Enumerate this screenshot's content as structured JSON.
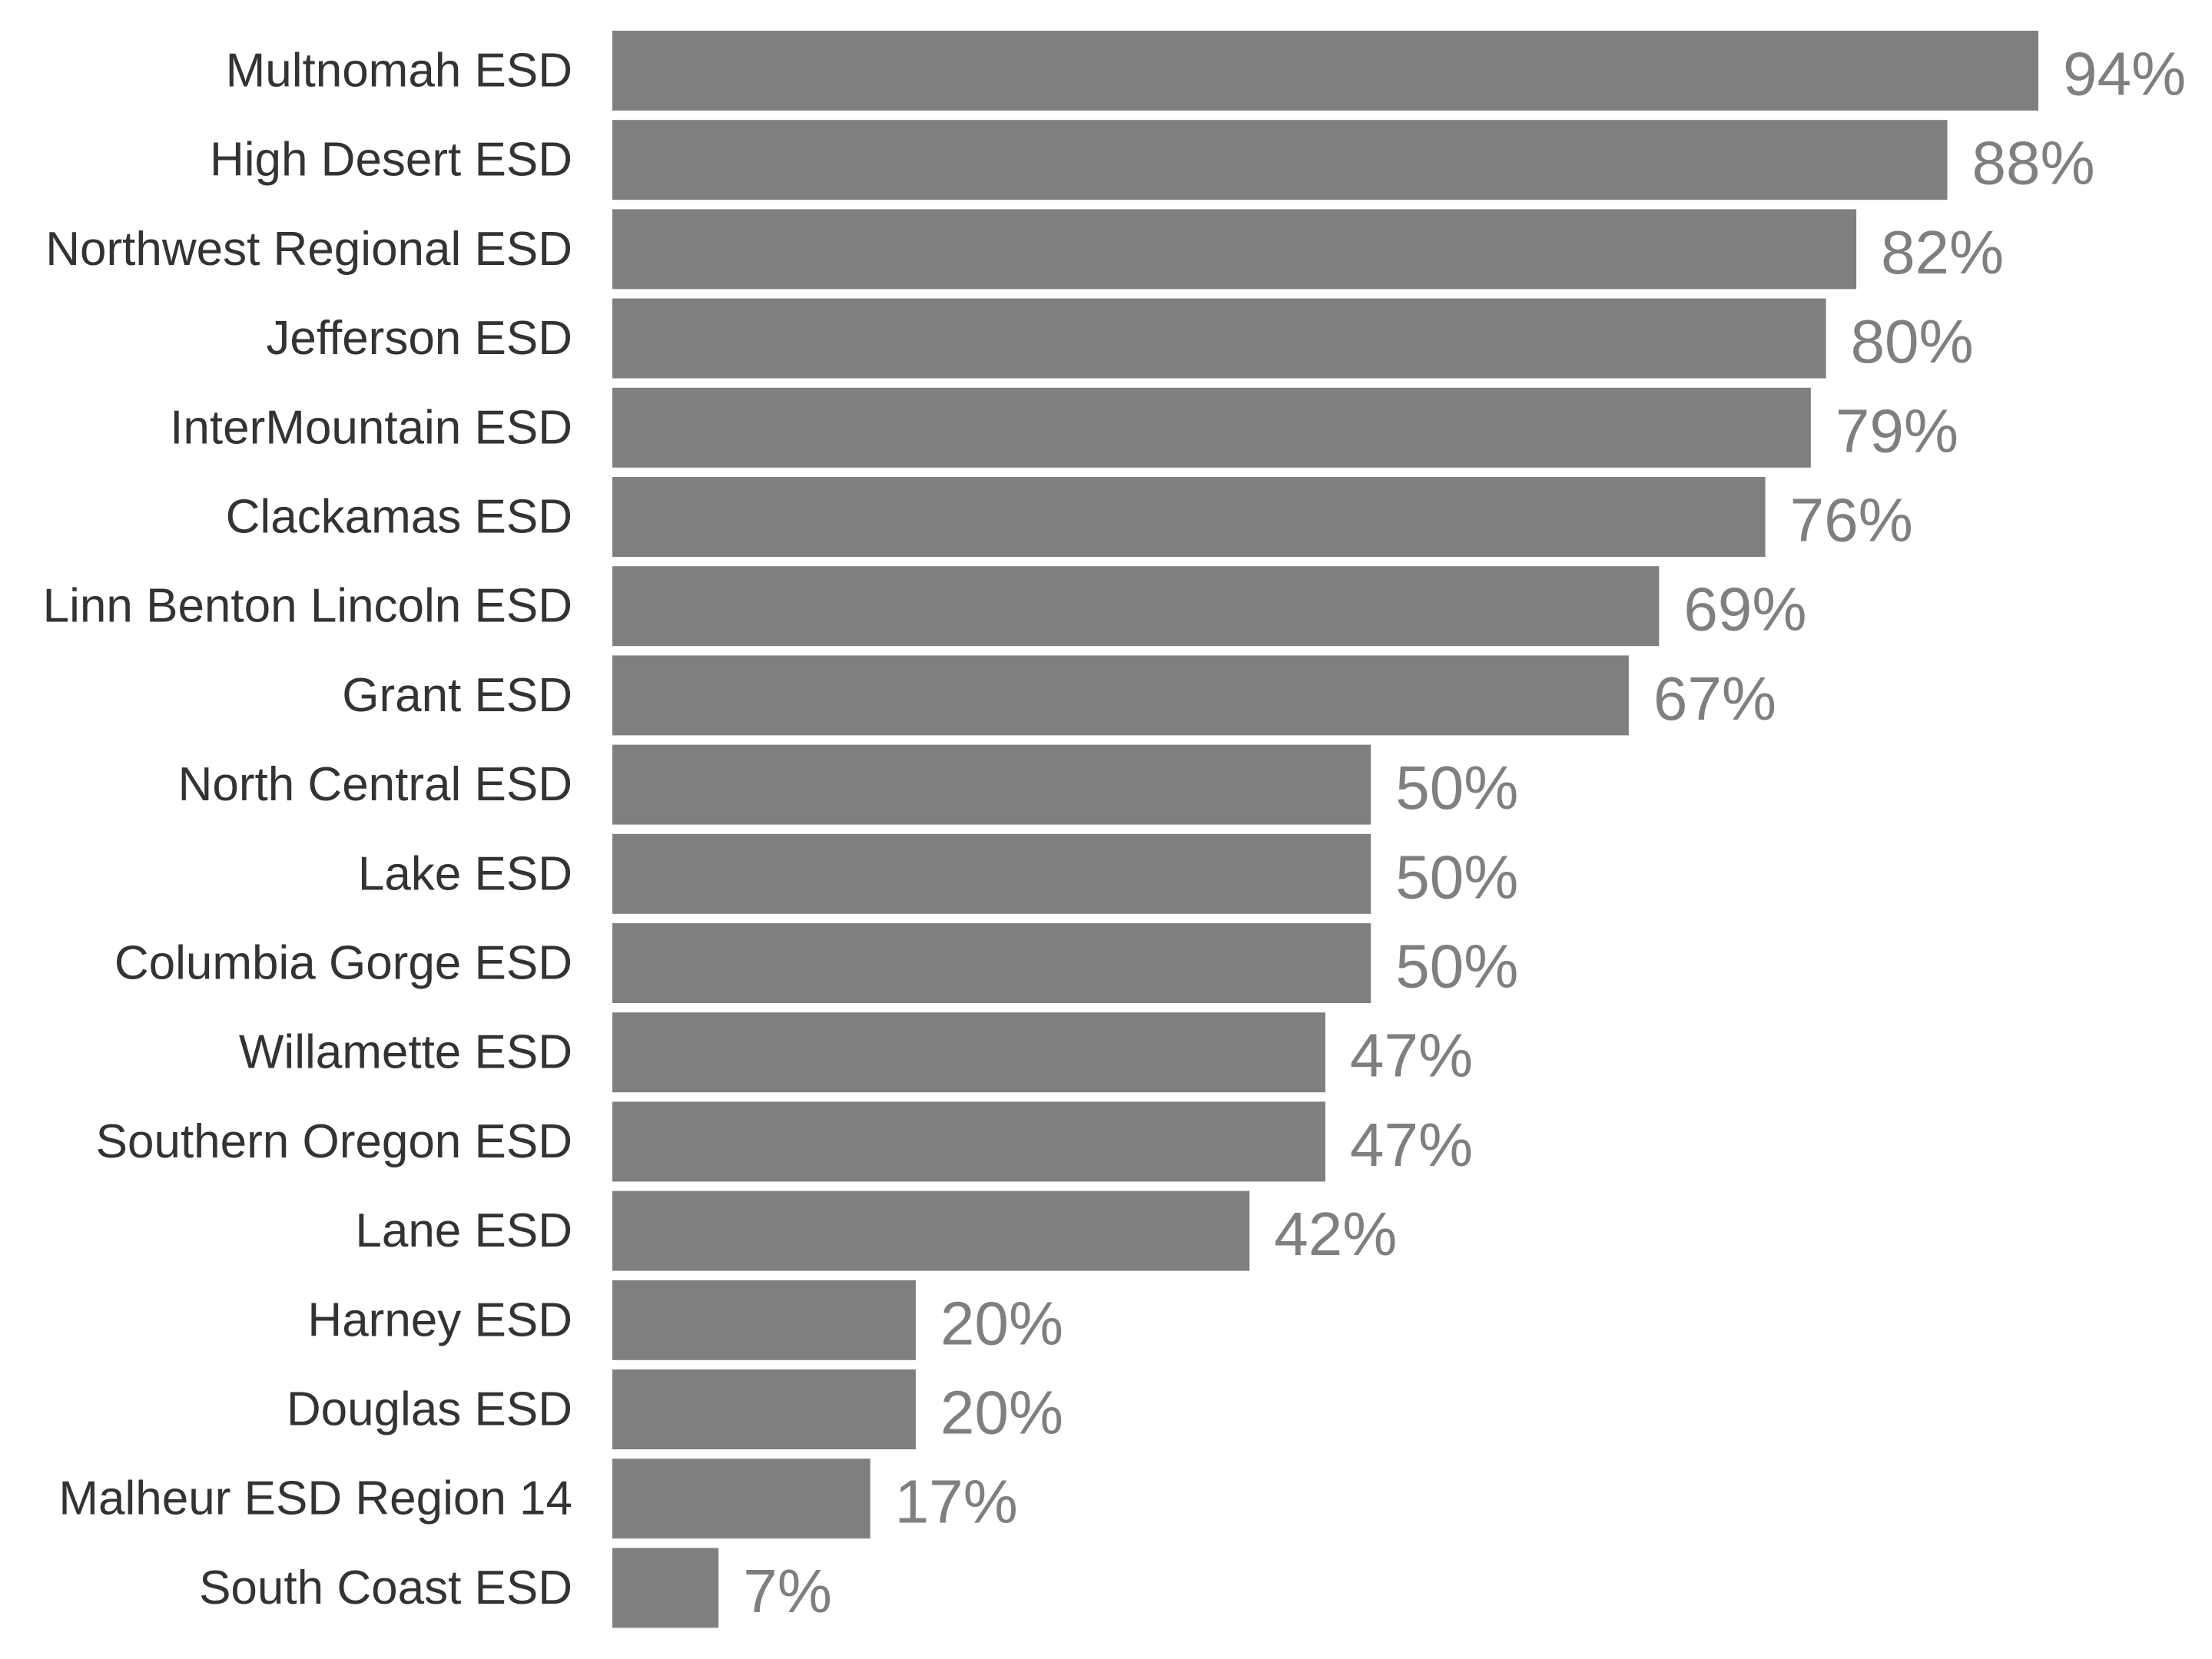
{
  "colors": {
    "bar": "#7f7f7f",
    "category_text": "#333333",
    "value_text": "#7f7f7f",
    "background": "#ffffff"
  },
  "chart_data": {
    "type": "bar",
    "orientation": "horizontal",
    "categories": [
      "Multnomah ESD",
      "High Desert ESD",
      "Northwest Regional ESD",
      "Jefferson ESD",
      "InterMountain ESD",
      "Clackamas ESD",
      "Linn Benton Lincoln ESD",
      "Grant ESD",
      "North Central ESD",
      "Lake ESD",
      "Columbia Gorge ESD",
      "Willamette ESD",
      "Southern Oregon ESD",
      "Lane ESD",
      "Harney ESD",
      "Douglas ESD",
      "Malheur ESD Region 14",
      "South Coast ESD"
    ],
    "values": [
      94,
      88,
      82,
      80,
      79,
      76,
      69,
      67,
      50,
      50,
      50,
      47,
      47,
      42,
      20,
      20,
      17,
      7
    ],
    "value_labels": [
      "94%",
      "88%",
      "82%",
      "80%",
      "79%",
      "76%",
      "69%",
      "67%",
      "50%",
      "50%",
      "50%",
      "47%",
      "47%",
      "42%",
      "20%",
      "20%",
      "17%",
      "7%"
    ],
    "title": "",
    "xlabel": "",
    "ylabel": "",
    "xlim": [
      0,
      94
    ],
    "grid": false,
    "legend": "none"
  }
}
